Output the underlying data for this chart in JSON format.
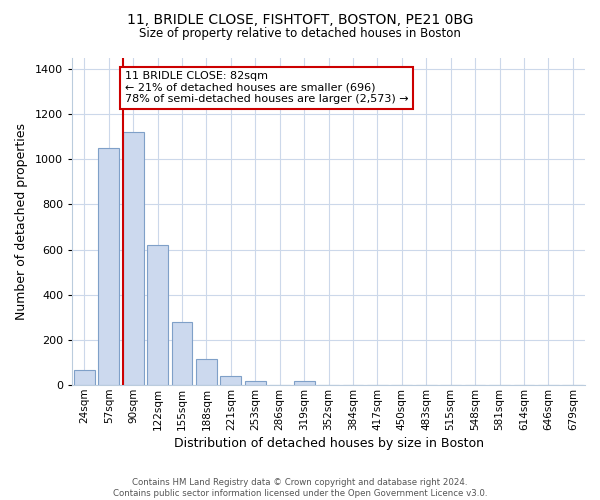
{
  "title1": "11, BRIDLE CLOSE, FISHTOFT, BOSTON, PE21 0BG",
  "title2": "Size of property relative to detached houses in Boston",
  "xlabel": "Distribution of detached houses by size in Boston",
  "ylabel": "Number of detached properties",
  "categories": [
    "24sqm",
    "57sqm",
    "90sqm",
    "122sqm",
    "155sqm",
    "188sqm",
    "221sqm",
    "253sqm",
    "286sqm",
    "319sqm",
    "352sqm",
    "384sqm",
    "417sqm",
    "450sqm",
    "483sqm",
    "515sqm",
    "548sqm",
    "581sqm",
    "614sqm",
    "646sqm",
    "679sqm"
  ],
  "values": [
    65,
    1050,
    1120,
    620,
    280,
    115,
    40,
    20,
    0,
    20,
    0,
    0,
    0,
    0,
    0,
    0,
    0,
    0,
    0,
    0,
    0
  ],
  "bar_color": "#ccd9ee",
  "bar_edge_color": "#7fa0c8",
  "vline_color": "#cc0000",
  "annotation_title": "11 BRIDLE CLOSE: 82sqm",
  "annotation_line1": "← 21% of detached houses are smaller (696)",
  "annotation_line2": "78% of semi-detached houses are larger (2,573) →",
  "annotation_box_color": "#ffffff",
  "annotation_box_edge": "#cc0000",
  "ylim": [
    0,
    1450
  ],
  "yticks": [
    0,
    200,
    400,
    600,
    800,
    1000,
    1200,
    1400
  ],
  "footer1": "Contains HM Land Registry data © Crown copyright and database right 2024.",
  "footer2": "Contains public sector information licensed under the Open Government Licence v3.0.",
  "bg_color": "#ffffff",
  "grid_color": "#ccd8ea"
}
